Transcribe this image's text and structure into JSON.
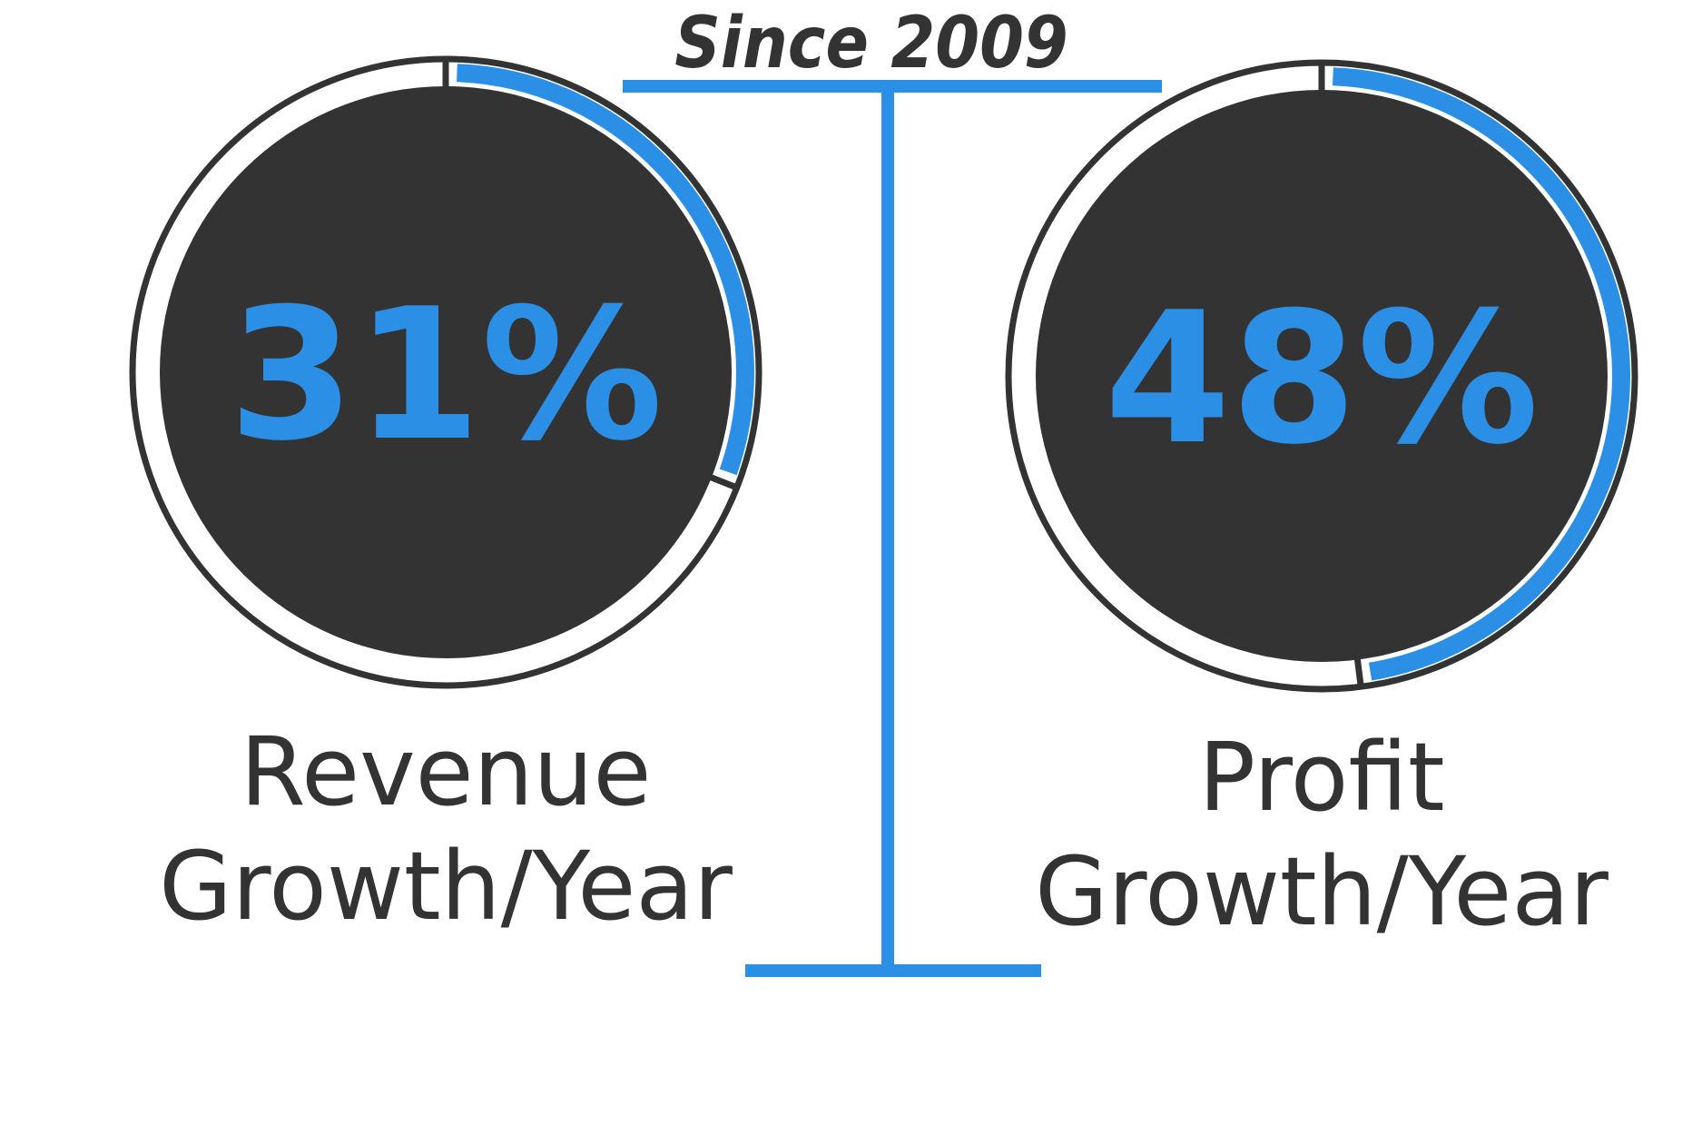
{
  "header": {
    "since_label": "Since 2009"
  },
  "colors": {
    "accent": "#2b8fe6",
    "dark": "#333333",
    "background": "#ffffff"
  },
  "chart_data": {
    "type": "gauge",
    "items": [
      {
        "value": 31,
        "value_label": "31%",
        "label_line1": "Revenue",
        "label_line2": "Growth/Year"
      },
      {
        "value": 48,
        "value_label": "48%",
        "label_line1": "Profit",
        "label_line2": "Growth/Year"
      }
    ]
  }
}
